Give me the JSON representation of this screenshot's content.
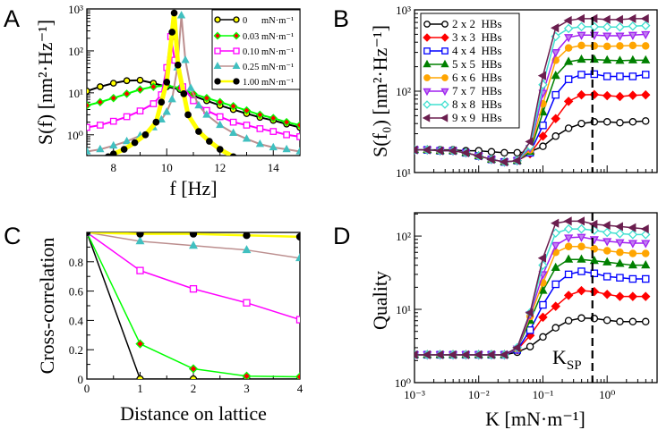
{
  "colors": {
    "frame": "#000000",
    "dashed_line": "#000000"
  },
  "panels": [
    {
      "id": "A",
      "label": "A",
      "xlabel": "f  [Hz]",
      "ylabel": "S(f)  [nm²·Hz⁻¹]",
      "xscale": "linear",
      "yscale": "log",
      "xlim": [
        7,
        15
      ],
      "ylim": [
        0.32,
        1000
      ],
      "xticks": [
        8,
        10,
        12,
        14
      ],
      "xtick_labels": [
        "8",
        "10",
        "12",
        "14"
      ],
      "yticks": [
        1,
        10,
        100,
        1000
      ],
      "ytick_labels": [
        "10⁰",
        "10¹",
        "10²",
        "10³"
      ],
      "legend": {
        "placement": "top-right"
      }
    },
    {
      "id": "B",
      "label": "B",
      "xlabel": "",
      "ylabel": "S(f₀)  [nm²·Hz⁻¹]",
      "xscale": "log",
      "yscale": "log",
      "xlim": [
        0.001,
        6
      ],
      "ylim": [
        10,
        1000
      ],
      "xticks": [
        0.001,
        0.01,
        0.1,
        1
      ],
      "xtick_labels": [],
      "yticks": [
        10,
        100,
        1000
      ],
      "ytick_labels": [
        "10¹",
        "10²",
        "10³"
      ],
      "legend": {
        "placement": "top-left"
      }
    },
    {
      "id": "C",
      "label": "C",
      "xlabel": "Distance on lattice",
      "ylabel": "Cross-correlation",
      "xscale": "linear",
      "yscale": "linear",
      "xlim": [
        0,
        4
      ],
      "ylim": [
        0,
        1
      ],
      "xticks": [
        0,
        1,
        2,
        3,
        4
      ],
      "xtick_labels": [
        "0",
        "1",
        "2",
        "3",
        "4"
      ],
      "yticks": [
        0,
        0.2,
        0.4,
        0.6,
        0.8
      ],
      "ytick_labels": [
        "0",
        "0.2",
        "0.4",
        "0.6",
        "0.8"
      ]
    },
    {
      "id": "D",
      "label": "D",
      "xlabel": "K  [mN·m⁻¹]",
      "ylabel": "Quality",
      "xscale": "log",
      "yscale": "log",
      "xlim": [
        0.001,
        6
      ],
      "ylim": [
        1,
        208
      ],
      "xticks": [
        0.001,
        0.01,
        0.1,
        1
      ],
      "xtick_labels": [
        "10⁻³",
        "10⁻²",
        "10⁻¹",
        "10⁰"
      ],
      "yticks": [
        1,
        10,
        100
      ],
      "ytick_labels": [
        "10⁰",
        "10¹",
        "10²"
      ],
      "annotation": {
        "text": "K",
        "sub": "SP",
        "x": 0.59
      }
    }
  ],
  "chart_data": [
    {
      "panel": "A",
      "type": "line",
      "series": [
        {
          "name": "0      mN·m⁻¹",
          "line": "#000000",
          "marker": "circle",
          "fill": "#ffff00",
          "stroke": "#000000",
          "x": [
            7,
            7.5,
            8,
            8.5,
            9,
            9.5,
            10,
            10.5,
            11,
            11.5,
            12,
            12.5,
            13,
            13.5,
            14,
            14.5,
            15
          ],
          "y": [
            11,
            14,
            17,
            19.5,
            20,
            17,
            14,
            12,
            8.5,
            6.5,
            5,
            4,
            3.2,
            2.6,
            2.2,
            1.8,
            1.5
          ]
        },
        {
          "name": "0.03 mN·m⁻¹",
          "line": "#00ff00",
          "marker": "diamond",
          "fill": "#ff0000",
          "stroke": "#00ff00",
          "x": [
            7,
            7.5,
            8,
            8.5,
            9,
            9.5,
            10,
            10.5,
            11,
            11.5,
            12,
            12.5,
            13,
            13.5,
            14,
            14.5,
            15
          ],
          "y": [
            5,
            6,
            7.5,
            9.5,
            12,
            14,
            15,
            13,
            9.5,
            7.5,
            6,
            4.8,
            3.8,
            3,
            2.5,
            2,
            1.7
          ]
        },
        {
          "name": "0.10 mN·m⁻¹",
          "line": "#ff00ff",
          "marker": "square",
          "fill": "#ffffff",
          "stroke": "#ff00ff",
          "x": [
            7,
            7.5,
            8,
            8.5,
            9,
            9.5,
            9.8,
            10,
            10.15,
            10.3,
            10.6,
            11,
            11.5,
            12,
            12.5,
            13,
            13.5,
            14,
            14.5,
            15
          ],
          "y": [
            1.5,
            1.7,
            2.1,
            2.7,
            3.7,
            5.5,
            9,
            40,
            220,
            60,
            14,
            6.5,
            3.8,
            2.7,
            2.0,
            1.7,
            1.4,
            1.2,
            1.0,
            0.9
          ]
        },
        {
          "name": "0.25 mN·m⁻¹",
          "line": "#bc8f8f",
          "marker": "triangle-up",
          "fill": "#40c0c0",
          "stroke": "#40c0c0",
          "x": [
            7,
            7.5,
            8,
            8.5,
            9,
            9.5,
            9.8,
            10,
            10.2,
            10.4,
            10.55,
            10.7,
            10.9,
            11.2,
            11.5,
            12,
            12.5,
            13,
            13.5,
            14,
            14.5,
            15
          ],
          "y": [
            0.4,
            0.45,
            0.55,
            0.7,
            0.95,
            1.5,
            2.3,
            3.5,
            7,
            40,
            700,
            60,
            13,
            5,
            3,
            1.7,
            1.1,
            0.8,
            0.6,
            0.5,
            0.45,
            0.4
          ]
        },
        {
          "name": "1.00 mN·m⁻¹",
          "line": "#ffff00",
          "marker": "circle",
          "fill": "#000000",
          "stroke": "#000000",
          "x": [
            7.8,
            8.0,
            8.4,
            8.8,
            9.2,
            9.6,
            9.8,
            10.0,
            10.2,
            10.28,
            10.42,
            10.64,
            10.8,
            11.2,
            11.6,
            12,
            12.5
          ],
          "y": [
            0.3,
            0.35,
            0.45,
            0.65,
            1.0,
            2,
            6,
            18,
            280,
            800,
            46,
            9.5,
            3,
            1.2,
            0.7,
            0.45,
            0.3
          ]
        }
      ]
    },
    {
      "panel": "B",
      "type": "line",
      "x": [
        0.001,
        0.00158,
        0.00251,
        0.00398,
        0.00631,
        0.01,
        0.0158,
        0.0251,
        0.0398,
        0.0631,
        0.1,
        0.158,
        0.251,
        0.398,
        0.631,
        1,
        1.58,
        2.51,
        3.98
      ],
      "series": [
        {
          "name": "2 x 2  HBs",
          "line": "#000000",
          "marker": "circle",
          "fill": "#ffffff",
          "stroke": "#000000",
          "y": [
            19,
            19,
            19,
            19,
            18.5,
            18.5,
            18,
            17.5,
            17.5,
            18,
            21,
            28,
            35,
            40,
            42,
            42,
            41,
            42,
            43
          ]
        },
        {
          "name": "3 x 3  HBs",
          "line": "#ff0000",
          "marker": "diamond",
          "fill": "#ff0000",
          "stroke": "#ff0000",
          "y": [
            19,
            19,
            18.5,
            18.5,
            17.5,
            16,
            14.5,
            13.5,
            14,
            17,
            28,
            46,
            75,
            90,
            91,
            88,
            86,
            89,
            90
          ]
        },
        {
          "name": "4 x 4  HBs",
          "line": "#0000ff",
          "marker": "square",
          "fill": "#ffffff",
          "stroke": "#0000ff",
          "y": [
            19,
            19,
            18.5,
            18.5,
            17.5,
            16,
            14.5,
            13.5,
            14,
            17.5,
            38,
            90,
            140,
            160,
            162,
            152,
            152,
            152,
            160
          ]
        },
        {
          "name": "5 x 5  HBs",
          "line": "#008000",
          "marker": "triangle-up",
          "fill": "#008000",
          "stroke": "#008000",
          "y": [
            19,
            19,
            18.5,
            18.5,
            17.5,
            16,
            14.5,
            13.5,
            14,
            18,
            55,
            155,
            230,
            245,
            245,
            240,
            237,
            240,
            240
          ]
        },
        {
          "name": "6 x 6  HBs",
          "line": "#ffa500",
          "marker": "circle",
          "fill": "#ffa500",
          "stroke": "#ffa500",
          "y": [
            19,
            19,
            18.5,
            18.5,
            17.5,
            16,
            14.5,
            13.5,
            14,
            19,
            70,
            240,
            340,
            365,
            360,
            355,
            360,
            365,
            360
          ]
        },
        {
          "name": "7 x 7  HBs",
          "line": "#a020f0",
          "marker": "triangle-down",
          "fill": "#c080f0",
          "stroke": "#a020f0",
          "y": [
            19,
            19,
            18.5,
            18.5,
            17.5,
            16,
            14.5,
            13.5,
            14,
            20,
            95,
            300,
            460,
            490,
            490,
            480,
            480,
            490,
            500
          ]
        },
        {
          "name": "8 x 8  HBs",
          "line": "#40e0d0",
          "marker": "diamond",
          "fill": "#ffffff",
          "stroke": "#40e0d0",
          "y": [
            19,
            19,
            18.5,
            18.5,
            17.5,
            16,
            14.5,
            13.5,
            14,
            21,
            120,
            470,
            590,
            620,
            620,
            615,
            615,
            630,
            640
          ]
        },
        {
          "name": "9 x 9  HBs",
          "line": "#6b1e4f",
          "marker": "triangle-left",
          "fill": "#6b1e4f",
          "stroke": "#6b1e4f",
          "y": [
            19,
            19,
            18.5,
            18.5,
            17.5,
            16,
            14.5,
            13.5,
            14,
            24,
            155,
            600,
            740,
            780,
            780,
            760,
            760,
            780,
            780
          ]
        }
      ]
    },
    {
      "panel": "C",
      "type": "line",
      "x": [
        0,
        1,
        2,
        3,
        4
      ],
      "series": [
        {
          "line": "#000000",
          "marker": "circle",
          "fill": "#ffff00",
          "stroke": "#000000",
          "y": [
            1,
            0,
            0,
            0,
            0
          ]
        },
        {
          "line": "#00ff00",
          "marker": "diamond",
          "fill": "#ff0000",
          "stroke": "#00ff00",
          "y": [
            1,
            0.24,
            0.07,
            0.02,
            0.015
          ]
        },
        {
          "line": "#ff00ff",
          "marker": "square",
          "fill": "#ffffff",
          "stroke": "#ff00ff",
          "y": [
            1,
            0.74,
            0.615,
            0.52,
            0.405
          ]
        },
        {
          "line": "#bc8f8f",
          "marker": "triangle-up",
          "fill": "#40c0c0",
          "stroke": "#40c0c0",
          "y": [
            1,
            0.94,
            0.91,
            0.88,
            0.825
          ]
        },
        {
          "line": "#ffff00",
          "marker": "circle",
          "fill": "#000000",
          "stroke": "#000000",
          "y": [
            1,
            0.99,
            0.99,
            0.98,
            0.97
          ]
        }
      ]
    },
    {
      "panel": "D",
      "type": "line",
      "x": [
        0.001,
        0.00158,
        0.00251,
        0.00398,
        0.00631,
        0.01,
        0.0158,
        0.0251,
        0.0398,
        0.0631,
        0.1,
        0.158,
        0.251,
        0.398,
        0.631,
        1,
        1.58,
        2.51,
        3.98
      ],
      "series": [
        {
          "line": "#000000",
          "marker": "circle",
          "fill": "#ffffff",
          "stroke": "#000000",
          "y": [
            2.4,
            2.4,
            2.4,
            2.4,
            2.4,
            2.4,
            2.4,
            2.4,
            2.6,
            3.1,
            4.2,
            5.6,
            7.0,
            7.6,
            7.5,
            7.1,
            6.8,
            6.8,
            6.8
          ]
        },
        {
          "line": "#ff0000",
          "marker": "diamond",
          "fill": "#ff0000",
          "stroke": "#ff0000",
          "y": [
            2.4,
            2.4,
            2.4,
            2.4,
            2.4,
            2.4,
            2.4,
            2.4,
            2.8,
            4.4,
            7.8,
            11,
            15.5,
            18,
            17.5,
            16,
            15,
            15,
            15
          ]
        },
        {
          "line": "#0000ff",
          "marker": "square",
          "fill": "#ffffff",
          "stroke": "#0000ff",
          "y": [
            2.4,
            2.4,
            2.4,
            2.4,
            2.4,
            2.4,
            2.4,
            2.4,
            2.8,
            5.2,
            11.5,
            22,
            30,
            33,
            31,
            28,
            27,
            26,
            26
          ]
        },
        {
          "line": "#008000",
          "marker": "triangle-up",
          "fill": "#008000",
          "stroke": "#008000",
          "y": [
            2.4,
            2.4,
            2.4,
            2.4,
            2.4,
            2.4,
            2.4,
            2.4,
            2.9,
            7,
            18,
            37,
            48,
            48,
            46,
            44,
            42,
            40,
            40
          ]
        },
        {
          "line": "#ffa500",
          "marker": "circle",
          "fill": "#ffa500",
          "stroke": "#ffa500",
          "y": [
            2.4,
            2.4,
            2.4,
            2.4,
            2.4,
            2.4,
            2.4,
            2.4,
            2.9,
            8,
            23,
            60,
            72,
            72,
            67,
            63,
            60,
            58,
            58
          ]
        },
        {
          "line": "#a020f0",
          "marker": "triangle-down",
          "fill": "#c080f0",
          "stroke": "#a020f0",
          "y": [
            2.4,
            2.4,
            2.4,
            2.4,
            2.4,
            2.4,
            2.4,
            2.4,
            2.9,
            8.5,
            30,
            75,
            95,
            97,
            90,
            85,
            82,
            80,
            80
          ]
        },
        {
          "line": "#40e0d0",
          "marker": "diamond",
          "fill": "#ffffff",
          "stroke": "#40e0d0",
          "y": [
            2.4,
            2.4,
            2.4,
            2.4,
            2.4,
            2.4,
            2.4,
            2.4,
            3.0,
            9,
            40,
            110,
            125,
            125,
            120,
            112,
            108,
            105,
            105
          ]
        },
        {
          "line": "#6b1e4f",
          "marker": "triangle-left",
          "fill": "#6b1e4f",
          "stroke": "#6b1e4f",
          "y": [
            2.4,
            2.4,
            2.4,
            2.4,
            2.4,
            2.4,
            2.4,
            2.4,
            3.0,
            9,
            50,
            150,
            160,
            160,
            145,
            140,
            135,
            130,
            125
          ]
        }
      ]
    }
  ]
}
